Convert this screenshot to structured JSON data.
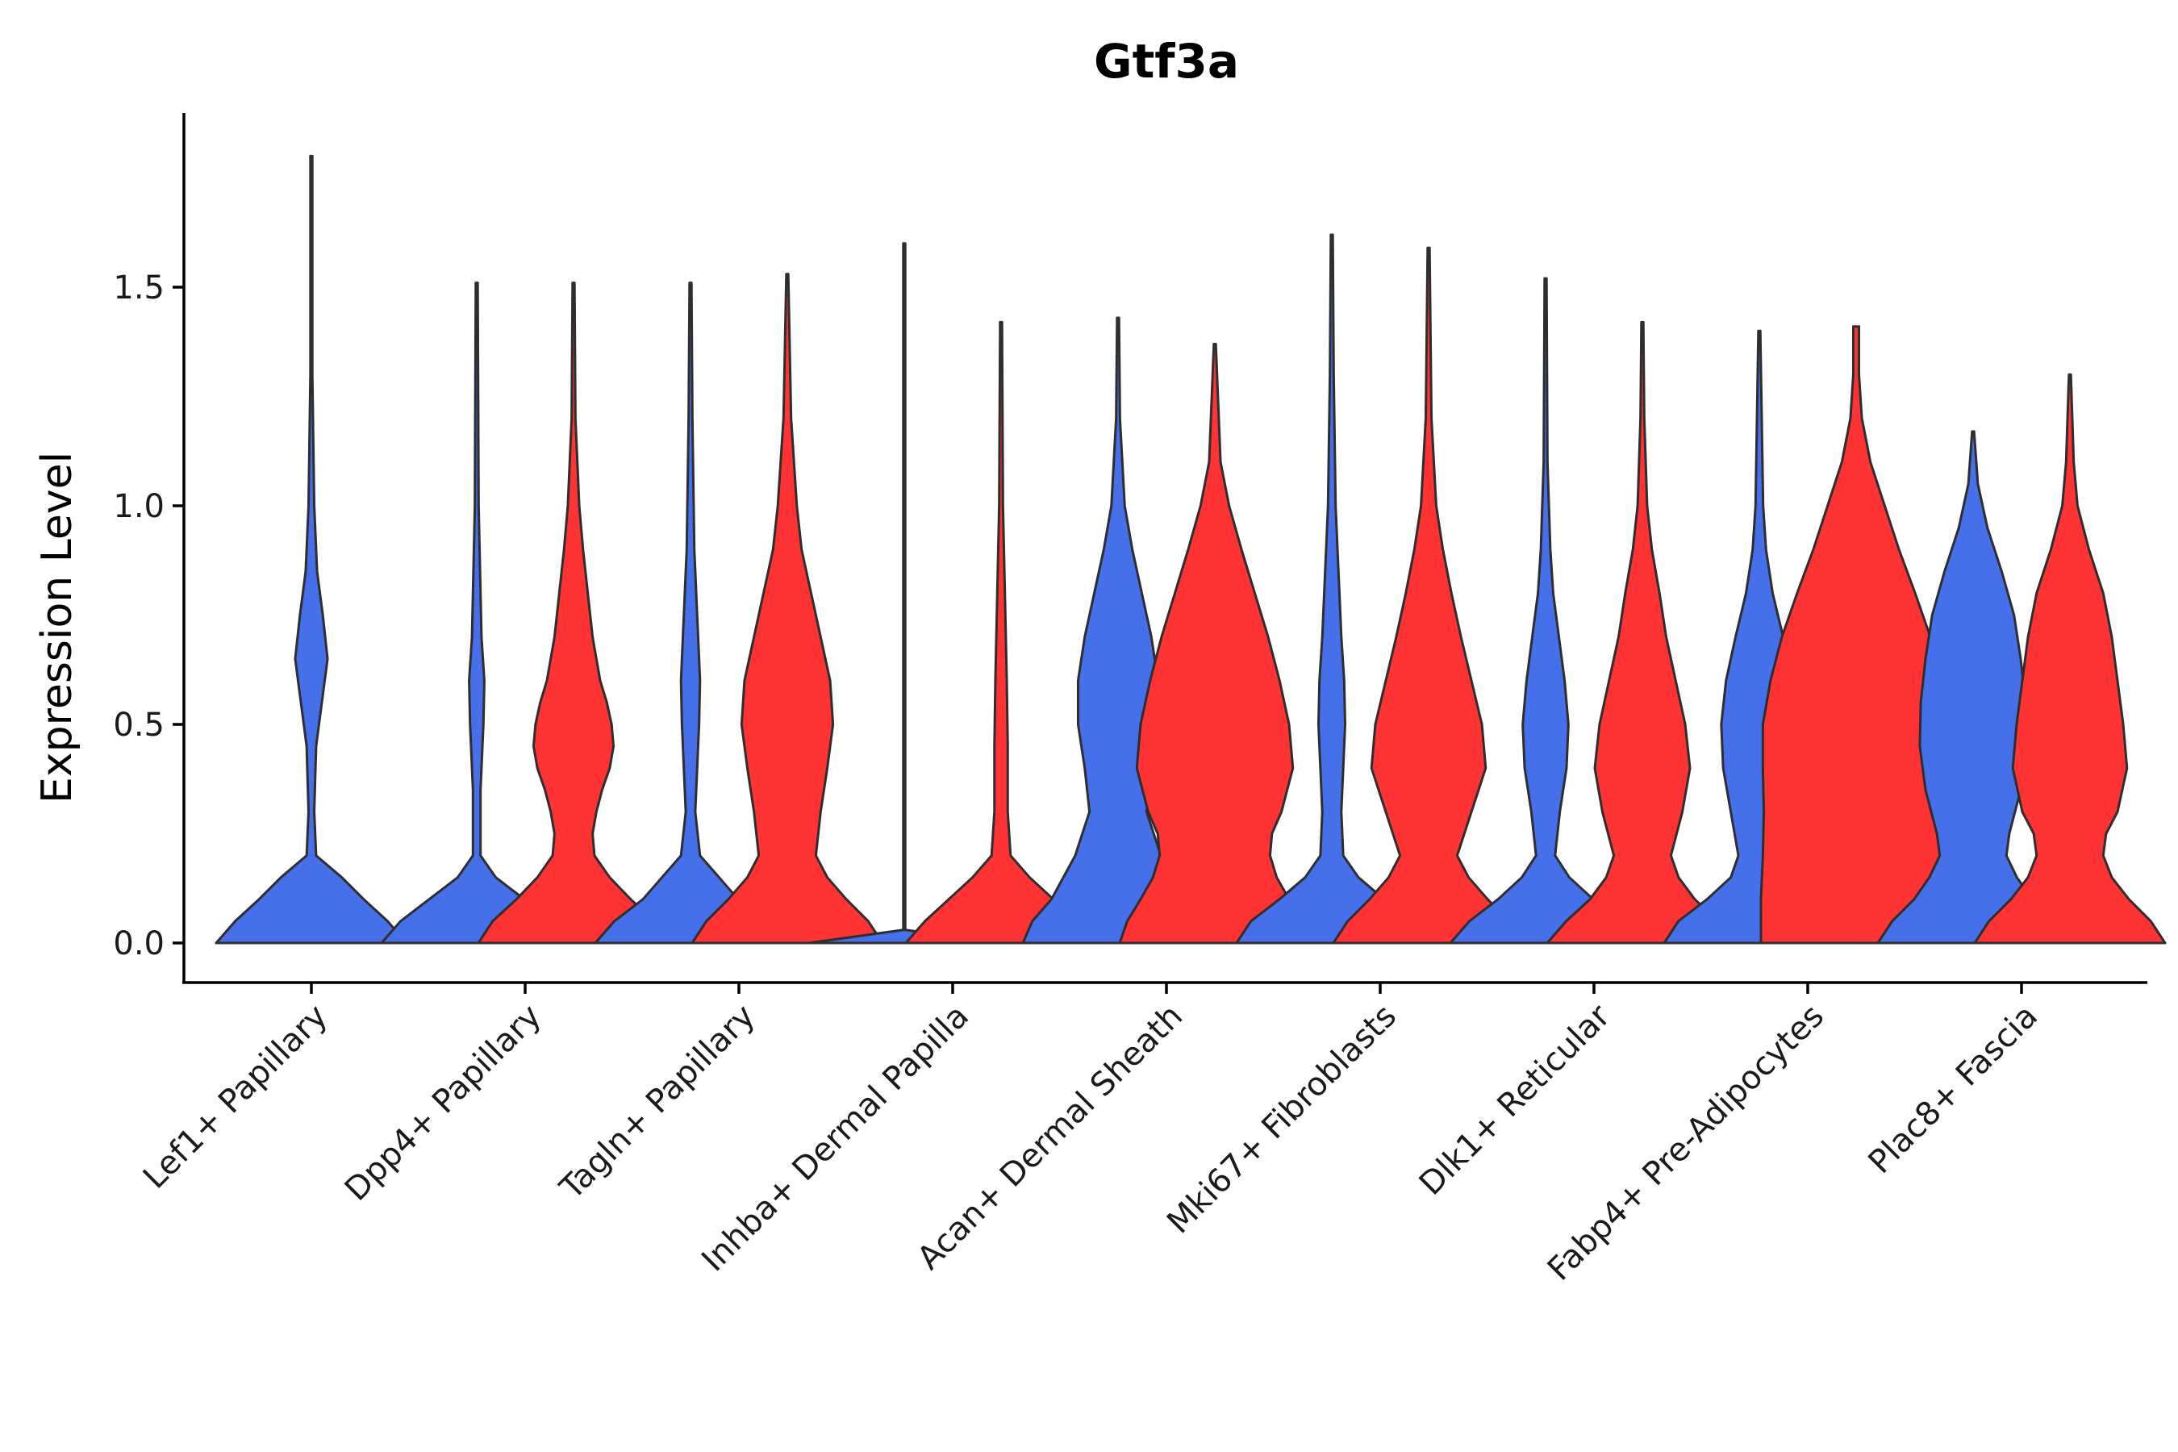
{
  "chart_data": {
    "type": "violin",
    "title": "Gtf3a",
    "xlabel": "",
    "ylabel": "Expression Level",
    "ylim": [
      -0.09,
      1.9
    ],
    "yticks": [
      "0.0",
      "0.5",
      "1.0",
      "1.5"
    ],
    "ytick_values": [
      0,
      0.5,
      1.0,
      1.5
    ],
    "grid": false,
    "legend": "none",
    "categories": [
      "Lef1+ Papillary",
      "Dpp4+ Papillary",
      "Tagln+ Papillary",
      "Inhba+ Dermal Papilla",
      "Acan+ Dermal Sheath",
      "Mki67+ Fibroblasts",
      "Dlk1+ Reticular",
      "Fabp4+ Pre-Adipocytes",
      "Plac8+ Fascia"
    ],
    "series": [
      {
        "name": "blue group",
        "color": "#4570EA",
        "max_values": [
          1.8,
          1.51,
          1.51,
          1.6,
          1.43,
          1.62,
          1.52,
          1.4,
          1.17
        ],
        "density_profiles": [
          [
            [
              0,
              1.0
            ],
            [
              0.05,
              0.8
            ],
            [
              0.1,
              0.55
            ],
            [
              0.15,
              0.32
            ],
            [
              0.2,
              0.05
            ],
            [
              0.3,
              0.03
            ],
            [
              0.45,
              0.05
            ],
            [
              0.55,
              0.11
            ],
            [
              0.65,
              0.17
            ],
            [
              0.75,
              0.12
            ],
            [
              0.85,
              0.06
            ],
            [
              1.0,
              0.03
            ],
            [
              1.3,
              0.01
            ],
            [
              1.8,
              0
            ]
          ],
          [
            [
              0,
              1.0
            ],
            [
              0.05,
              0.8
            ],
            [
              0.1,
              0.5
            ],
            [
              0.15,
              0.2
            ],
            [
              0.2,
              0.04
            ],
            [
              0.35,
              0.04
            ],
            [
              0.5,
              0.07
            ],
            [
              0.6,
              0.08
            ],
            [
              0.7,
              0.05
            ],
            [
              1.0,
              0.02
            ],
            [
              1.51,
              0
            ]
          ],
          [
            [
              0,
              1.0
            ],
            [
              0.05,
              0.8
            ],
            [
              0.1,
              0.5
            ],
            [
              0.15,
              0.3
            ],
            [
              0.2,
              0.1
            ],
            [
              0.3,
              0.05
            ],
            [
              0.4,
              0.07
            ],
            [
              0.5,
              0.09
            ],
            [
              0.6,
              0.1
            ],
            [
              0.7,
              0.08
            ],
            [
              0.9,
              0.04
            ],
            [
              1.2,
              0.02
            ],
            [
              1.51,
              0
            ]
          ],
          [
            [
              0,
              1.0
            ],
            [
              0.03,
              0
            ],
            [
              1.6,
              0
            ]
          ],
          [
            [
              0,
              1.0
            ],
            [
              0.05,
              0.9
            ],
            [
              0.1,
              0.7
            ],
            [
              0.2,
              0.45
            ],
            [
              0.3,
              0.3
            ],
            [
              0.4,
              0.35
            ],
            [
              0.5,
              0.42
            ],
            [
              0.6,
              0.42
            ],
            [
              0.7,
              0.35
            ],
            [
              0.8,
              0.25
            ],
            [
              0.9,
              0.15
            ],
            [
              1.0,
              0.07
            ],
            [
              1.2,
              0.02
            ],
            [
              1.43,
              0
            ]
          ],
          [
            [
              0,
              1.0
            ],
            [
              0.05,
              0.85
            ],
            [
              0.1,
              0.55
            ],
            [
              0.15,
              0.28
            ],
            [
              0.2,
              0.12
            ],
            [
              0.3,
              0.1
            ],
            [
              0.4,
              0.12
            ],
            [
              0.5,
              0.14
            ],
            [
              0.6,
              0.13
            ],
            [
              0.7,
              0.1
            ],
            [
              0.85,
              0.07
            ],
            [
              1.0,
              0.04
            ],
            [
              1.3,
              0.02
            ],
            [
              1.62,
              0
            ]
          ],
          [
            [
              0,
              1.0
            ],
            [
              0.05,
              0.8
            ],
            [
              0.1,
              0.5
            ],
            [
              0.15,
              0.25
            ],
            [
              0.2,
              0.1
            ],
            [
              0.3,
              0.15
            ],
            [
              0.4,
              0.22
            ],
            [
              0.5,
              0.24
            ],
            [
              0.6,
              0.2
            ],
            [
              0.7,
              0.14
            ],
            [
              0.8,
              0.08
            ],
            [
              0.9,
              0.05
            ],
            [
              1.1,
              0.02
            ],
            [
              1.52,
              0
            ]
          ],
          [
            [
              0,
              1.0
            ],
            [
              0.05,
              0.85
            ],
            [
              0.1,
              0.55
            ],
            [
              0.15,
              0.3
            ],
            [
              0.2,
              0.22
            ],
            [
              0.3,
              0.3
            ],
            [
              0.4,
              0.38
            ],
            [
              0.5,
              0.4
            ],
            [
              0.6,
              0.35
            ],
            [
              0.7,
              0.25
            ],
            [
              0.8,
              0.14
            ],
            [
              0.9,
              0.07
            ],
            [
              1.0,
              0.04
            ],
            [
              1.4,
              0
            ]
          ],
          [
            [
              0,
              1.0
            ],
            [
              0.05,
              0.85
            ],
            [
              0.1,
              0.62
            ],
            [
              0.15,
              0.46
            ],
            [
              0.2,
              0.35
            ],
            [
              0.25,
              0.38
            ],
            [
              0.35,
              0.5
            ],
            [
              0.45,
              0.56
            ],
            [
              0.55,
              0.55
            ],
            [
              0.65,
              0.5
            ],
            [
              0.75,
              0.43
            ],
            [
              0.85,
              0.3
            ],
            [
              0.95,
              0.15
            ],
            [
              1.05,
              0.05
            ],
            [
              1.17,
              0
            ]
          ]
        ]
      },
      {
        "name": "red group",
        "color": "#FF3333",
        "max_values": [
          null,
          1.51,
          1.53,
          1.42,
          1.37,
          1.59,
          1.42,
          1.41,
          1.3
        ],
        "density_profiles": [
          null,
          [
            [
              0,
              1.0
            ],
            [
              0.05,
              0.85
            ],
            [
              0.1,
              0.6
            ],
            [
              0.15,
              0.38
            ],
            [
              0.2,
              0.22
            ],
            [
              0.25,
              0.2
            ],
            [
              0.3,
              0.24
            ],
            [
              0.35,
              0.3
            ],
            [
              0.4,
              0.38
            ],
            [
              0.45,
              0.42
            ],
            [
              0.5,
              0.4
            ],
            [
              0.55,
              0.35
            ],
            [
              0.6,
              0.28
            ],
            [
              0.7,
              0.2
            ],
            [
              0.8,
              0.15
            ],
            [
              0.9,
              0.1
            ],
            [
              1.0,
              0.06
            ],
            [
              1.2,
              0.02
            ],
            [
              1.51,
              0
            ]
          ],
          [
            [
              0,
              1.0
            ],
            [
              0.05,
              0.85
            ],
            [
              0.1,
              0.62
            ],
            [
              0.15,
              0.42
            ],
            [
              0.2,
              0.3
            ],
            [
              0.3,
              0.35
            ],
            [
              0.4,
              0.42
            ],
            [
              0.5,
              0.48
            ],
            [
              0.6,
              0.45
            ],
            [
              0.7,
              0.35
            ],
            [
              0.8,
              0.25
            ],
            [
              0.9,
              0.15
            ],
            [
              1.0,
              0.1
            ],
            [
              1.2,
              0.04
            ],
            [
              1.53,
              0
            ]
          ],
          [
            [
              0,
              1.0
            ],
            [
              0.05,
              0.8
            ],
            [
              0.1,
              0.55
            ],
            [
              0.15,
              0.3
            ],
            [
              0.2,
              0.1
            ],
            [
              0.3,
              0.07
            ],
            [
              0.45,
              0.07
            ],
            [
              0.6,
              0.06
            ],
            [
              0.8,
              0.04
            ],
            [
              1.0,
              0.02
            ],
            [
              1.42,
              0
            ]
          ],
          [
            [
              0,
              1.0
            ],
            [
              0.05,
              0.92
            ],
            [
              0.1,
              0.78
            ],
            [
              0.15,
              0.65
            ],
            [
              0.2,
              0.58
            ],
            [
              0.25,
              0.6
            ],
            [
              0.3,
              0.7
            ],
            [
              0.4,
              0.82
            ],
            [
              0.5,
              0.78
            ],
            [
              0.6,
              0.68
            ],
            [
              0.7,
              0.56
            ],
            [
              0.8,
              0.42
            ],
            [
              0.9,
              0.28
            ],
            [
              1.0,
              0.15
            ],
            [
              1.1,
              0.06
            ],
            [
              1.37,
              0
            ]
          ],
          [
            [
              0,
              1.0
            ],
            [
              0.05,
              0.85
            ],
            [
              0.1,
              0.62
            ],
            [
              0.15,
              0.42
            ],
            [
              0.2,
              0.3
            ],
            [
              0.3,
              0.45
            ],
            [
              0.4,
              0.6
            ],
            [
              0.5,
              0.56
            ],
            [
              0.6,
              0.45
            ],
            [
              0.7,
              0.34
            ],
            [
              0.8,
              0.24
            ],
            [
              0.9,
              0.15
            ],
            [
              1.0,
              0.08
            ],
            [
              1.2,
              0.03
            ],
            [
              1.59,
              0
            ]
          ],
          [
            [
              0,
              1.0
            ],
            [
              0.05,
              0.8
            ],
            [
              0.1,
              0.55
            ],
            [
              0.15,
              0.38
            ],
            [
              0.2,
              0.3
            ],
            [
              0.3,
              0.42
            ],
            [
              0.4,
              0.5
            ],
            [
              0.5,
              0.45
            ],
            [
              0.6,
              0.35
            ],
            [
              0.7,
              0.25
            ],
            [
              0.8,
              0.18
            ],
            [
              0.9,
              0.1
            ],
            [
              1.0,
              0.05
            ],
            [
              1.2,
              0.02
            ],
            [
              1.42,
              0
            ]
          ],
          [
            [
              0,
              1.0
            ],
            [
              0.1,
              1.0
            ],
            [
              0.2,
              0.98
            ],
            [
              0.3,
              0.97
            ],
            [
              0.4,
              0.98
            ],
            [
              0.5,
              0.98
            ],
            [
              0.6,
              0.9
            ],
            [
              0.7,
              0.78
            ],
            [
              0.8,
              0.62
            ],
            [
              0.9,
              0.45
            ],
            [
              1.0,
              0.3
            ],
            [
              1.1,
              0.15
            ],
            [
              1.2,
              0.06
            ],
            [
              1.3,
              0.03
            ],
            [
              1.41,
              0.03
            ]
          ],
          [
            [
              0,
              1.0
            ],
            [
              0.05,
              0.85
            ],
            [
              0.1,
              0.62
            ],
            [
              0.15,
              0.44
            ],
            [
              0.2,
              0.35
            ],
            [
              0.25,
              0.38
            ],
            [
              0.3,
              0.5
            ],
            [
              0.4,
              0.6
            ],
            [
              0.5,
              0.56
            ],
            [
              0.6,
              0.5
            ],
            [
              0.7,
              0.44
            ],
            [
              0.8,
              0.35
            ],
            [
              0.9,
              0.2
            ],
            [
              1.0,
              0.08
            ],
            [
              1.1,
              0.04
            ],
            [
              1.3,
              0
            ]
          ]
        ]
      }
    ]
  }
}
